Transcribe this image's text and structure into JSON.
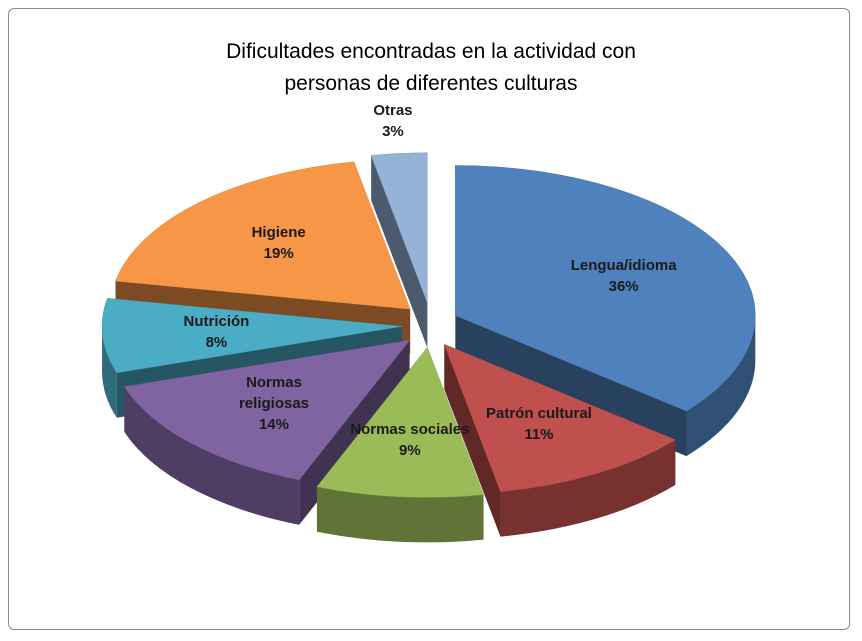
{
  "chart_data": {
    "type": "pie3d",
    "title": "Dificultades encontradas en la actividad con personas de diferentes culturas",
    "categories": [
      "Lengua/idioma",
      "Patrón cultural",
      "Normas sociales",
      "Normas religiosas",
      "Nutrición",
      "Higiene",
      "Otras"
    ],
    "values": [
      36,
      11,
      9,
      14,
      8,
      19,
      3
    ],
    "value_labels": [
      "36%",
      "11%",
      "9%",
      "14%",
      "8%",
      "19%",
      "3%"
    ],
    "colors": [
      "#4f81bd",
      "#c0504d",
      "#9bbb59",
      "#8064a2",
      "#4bacc6",
      "#f79646",
      "#95b3d7"
    ]
  }
}
